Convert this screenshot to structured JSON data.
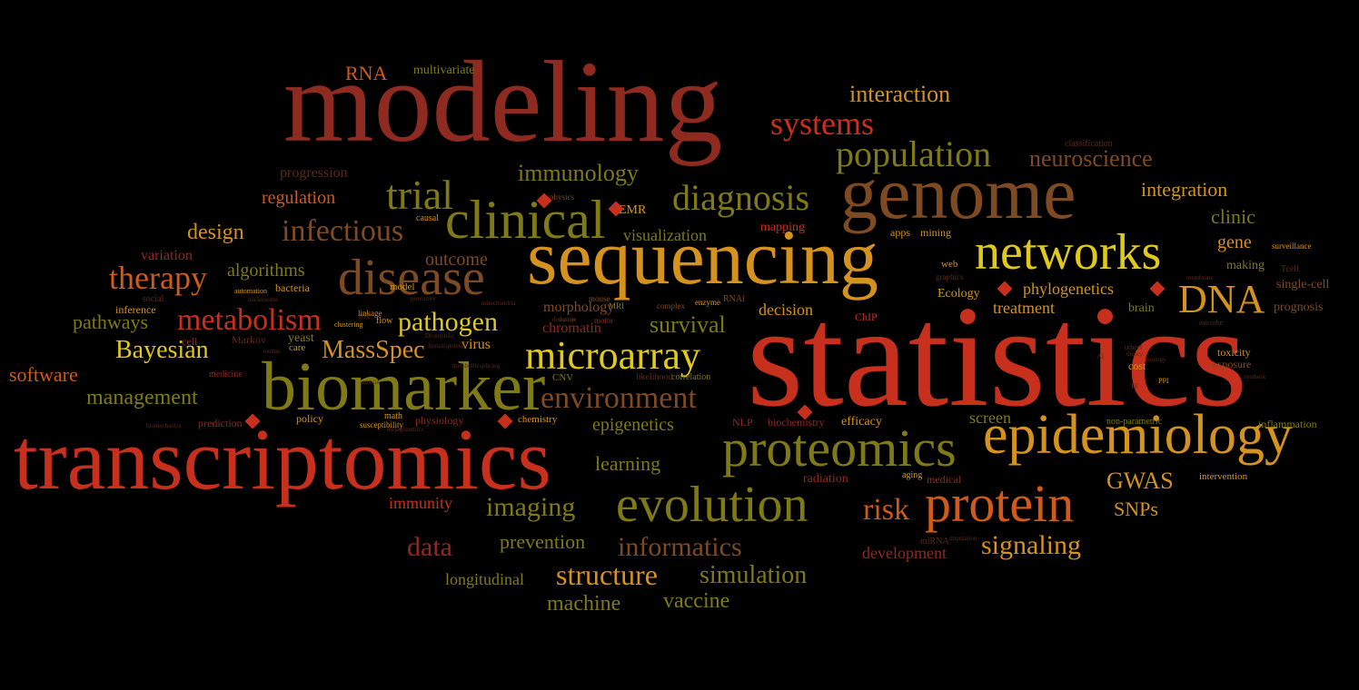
{
  "cloud": {
    "background": "#000000",
    "palette": {
      "red": "#c8301e",
      "darkred": "#8e2a1f",
      "orange": "#d05a18",
      "amber": "#d6921e",
      "yellow": "#e0c81c",
      "olive": "#7f7a16",
      "brown": "#7e4a22",
      "dimred": "#5a2a1c",
      "dimolive": "#4e4a1a"
    },
    "diamond_color": "#c8301e",
    "words": [
      {
        "text": "statistics",
        "color": "#c8301e"
      },
      {
        "text": "modeling",
        "color": "#8e2a1f"
      },
      {
        "text": "transcriptomics",
        "color": "#c8301e"
      },
      {
        "text": "sequencing",
        "color": "#d6921e"
      },
      {
        "text": "genome",
        "color": "#7e4a22"
      },
      {
        "text": "biomarker",
        "color": "#7f7a16"
      },
      {
        "text": "epidemiology",
        "color": "#d6921e"
      },
      {
        "text": "proteomics",
        "color": "#7f7a16"
      },
      {
        "text": "evolution",
        "color": "#7f7a16"
      },
      {
        "text": "clinical",
        "color": "#7f7a16"
      },
      {
        "text": "networks",
        "color": "#e0c81c"
      },
      {
        "text": "disease",
        "color": "#7e4a22"
      },
      {
        "text": "protein",
        "color": "#d05a18"
      },
      {
        "text": "microarray",
        "color": "#e0c81c"
      },
      {
        "text": "diagnosis",
        "color": "#7f7a16"
      },
      {
        "text": "population",
        "color": "#7f7a16"
      },
      {
        "text": "metabolism",
        "color": "#c8301e"
      },
      {
        "text": "systems",
        "color": "#c8301e"
      },
      {
        "text": "infectious",
        "color": "#7e4a22"
      },
      {
        "text": "trial",
        "color": "#7f7a16"
      },
      {
        "text": "DNA",
        "color": "#d6921e"
      },
      {
        "text": "therapy",
        "color": "#d05a18"
      },
      {
        "text": "environment",
        "color": "#7e4a22"
      },
      {
        "text": "informatics",
        "color": "#7e4a22"
      },
      {
        "text": "data",
        "color": "#8e2a1f"
      },
      {
        "text": "structure",
        "color": "#d6921e"
      },
      {
        "text": "pathogen",
        "color": "#e0c81c"
      },
      {
        "text": "Bayesian",
        "color": "#e0c81c"
      },
      {
        "text": "MassSpec",
        "color": "#d6921e"
      },
      {
        "text": "imaging",
        "color": "#7f7a16"
      },
      {
        "text": "risk",
        "color": "#d05a18"
      },
      {
        "text": "signaling",
        "color": "#d6921e"
      },
      {
        "text": "simulation",
        "color": "#7f7a16"
      },
      {
        "text": "immunology",
        "color": "#7f7a16"
      },
      {
        "text": "neuroscience",
        "color": "#7e4a22"
      },
      {
        "text": "interaction",
        "color": "#d6921e"
      },
      {
        "text": "integration",
        "color": "#d6921e"
      },
      {
        "text": "management",
        "color": "#7f7a16"
      },
      {
        "text": "survival",
        "color": "#7f7a16"
      },
      {
        "text": "software",
        "color": "#d05a18"
      },
      {
        "text": "pathways",
        "color": "#7f7a16"
      },
      {
        "text": "GWAS",
        "color": "#d6921e"
      },
      {
        "text": "design",
        "color": "#d6921e"
      },
      {
        "text": "machine",
        "color": "#7f7a16"
      },
      {
        "text": "vaccine",
        "color": "#7f7a16"
      },
      {
        "text": "prevention",
        "color": "#7f7a16"
      },
      {
        "text": "learning",
        "color": "#7f7a16"
      },
      {
        "text": "epigenetics",
        "color": "#7f7a16"
      },
      {
        "text": "outcome",
        "color": "#7e4a22"
      },
      {
        "text": "algorithms",
        "color": "#7f7a16"
      },
      {
        "text": "RNA",
        "color": "#d05a18"
      },
      {
        "text": "clinic",
        "color": "#7f7a16"
      },
      {
        "text": "gene",
        "color": "#d6921e"
      },
      {
        "text": "SNPs",
        "color": "#d6921e"
      },
      {
        "text": "visualization",
        "color": "#7f7a16"
      },
      {
        "text": "phylogenetics",
        "color": "#d6921e"
      },
      {
        "text": "treatment",
        "color": "#d6921e"
      },
      {
        "text": "decision",
        "color": "#d6921e"
      },
      {
        "text": "longitudinal",
        "color": "#7f7a16"
      },
      {
        "text": "immunity",
        "color": "#c8301e"
      },
      {
        "text": "development",
        "color": "#8e2a1f"
      },
      {
        "text": "regulation",
        "color": "#d05a18"
      },
      {
        "text": "variation",
        "color": "#8e2a1f"
      },
      {
        "text": "screen",
        "color": "#7f7a16"
      },
      {
        "text": "virus",
        "color": "#d6921e"
      },
      {
        "text": "morphology",
        "color": "#7e4a22"
      },
      {
        "text": "chromatin",
        "color": "#8e2a1f"
      },
      {
        "text": "progression",
        "color": "#5a2a1c"
      },
      {
        "text": "multivariate",
        "color": "#7f7a16"
      },
      {
        "text": "making",
        "color": "#7f7a16"
      },
      {
        "text": "single-cell",
        "color": "#7e4a22"
      },
      {
        "text": "prognosis",
        "color": "#7e4a22"
      },
      {
        "text": "brain",
        "color": "#7f7a16"
      },
      {
        "text": "Ecology",
        "color": "#d6921e"
      },
      {
        "text": "efficacy",
        "color": "#d6921e"
      },
      {
        "text": "radiation",
        "color": "#8e2a1f"
      },
      {
        "text": "medical",
        "color": "#8e2a1f"
      },
      {
        "text": "physiology",
        "color": "#8e2a1f"
      },
      {
        "text": "chemistry",
        "color": "#d6921e"
      },
      {
        "text": "biochemistry",
        "color": "#8e2a1f"
      },
      {
        "text": "NLP",
        "color": "#8e2a1f"
      },
      {
        "text": "inflammation",
        "color": "#7f7a16"
      },
      {
        "text": "exposure",
        "color": "#7e4a22"
      },
      {
        "text": "toxicity",
        "color": "#d6921e"
      },
      {
        "text": "cost",
        "color": "#d6921e"
      },
      {
        "text": "mapping",
        "color": "#c8301e"
      },
      {
        "text": "EMR",
        "color": "#d6921e"
      },
      {
        "text": "prediction",
        "color": "#8e2a1f"
      },
      {
        "text": "policy",
        "color": "#d6921e"
      },
      {
        "text": "yeast",
        "color": "#7f7a16"
      },
      {
        "text": "Markov",
        "color": "#5a2a1c"
      },
      {
        "text": "inference",
        "color": "#d6921e"
      },
      {
        "text": "bacteria",
        "color": "#d6921e"
      },
      {
        "text": "care",
        "color": "#d6921e"
      },
      {
        "text": "cell",
        "color": "#8e2a1f"
      },
      {
        "text": "social",
        "color": "#5a2a1c"
      },
      {
        "text": "medicine",
        "color": "#8e2a1f"
      },
      {
        "text": "apps",
        "color": "#d6921e"
      },
      {
        "text": "mining",
        "color": "#d6921e"
      },
      {
        "text": "web",
        "color": "#d6921e"
      },
      {
        "text": "complex",
        "color": "#7e4a22"
      },
      {
        "text": "mouse",
        "color": "#7e4a22"
      },
      {
        "text": "MRI",
        "color": "#7f7a16"
      },
      {
        "text": "motor",
        "color": "#8e2a1f"
      },
      {
        "text": "physics",
        "color": "#7e4a22"
      },
      {
        "text": "causal",
        "color": "#d6921e"
      },
      {
        "text": "model",
        "color": "#d6921e"
      },
      {
        "text": "math",
        "color": "#d6921e"
      },
      {
        "text": "susceptibility",
        "color": "#d6921e"
      },
      {
        "text": "linkage",
        "color": "#d6921e"
      },
      {
        "text": "flow",
        "color": "#d6921e"
      },
      {
        "text": "CNV",
        "color": "#7f7a16"
      },
      {
        "text": "correlation",
        "color": "#7f7a16"
      },
      {
        "text": "likelihood",
        "color": "#5a2a1c"
      },
      {
        "text": "ChIP",
        "color": "#c8301e"
      },
      {
        "text": "RNAi",
        "color": "#7e4a22"
      },
      {
        "text": "enzyme",
        "color": "#d6921e"
      },
      {
        "text": "non-parametric",
        "color": "#7f7a16"
      },
      {
        "text": "intervention",
        "color": "#d6921e"
      },
      {
        "text": "aging",
        "color": "#d6921e"
      },
      {
        "text": "miRNA",
        "color": "#5a2a1c"
      },
      {
        "text": "Tcell",
        "color": "#5a2a1c"
      },
      {
        "text": "surveillance",
        "color": "#d6921e"
      },
      {
        "text": "classification",
        "color": "#5a2a1c"
      },
      {
        "text": "graphics",
        "color": "#5a2a1c"
      },
      {
        "text": "clustering",
        "color": "#d6921e"
      },
      {
        "text": "automation",
        "color": "#d6921e"
      },
      {
        "text": "detection",
        "color": "#5a2a1c"
      },
      {
        "text": "dosage",
        "color": "#5a2a1c"
      },
      {
        "text": "mitochondria",
        "color": "#5a2a1c"
      },
      {
        "text": "Drosophila",
        "color": "#5a2a1c"
      },
      {
        "text": "metagenomics",
        "color": "#5a2a1c"
      },
      {
        "text": "microbe",
        "color": "#5a2a1c"
      },
      {
        "text": "PPI",
        "color": "#d6921e"
      },
      {
        "text": "TF",
        "color": "#5a2a1c"
      },
      {
        "text": "AI",
        "color": "#5a2a1c"
      },
      {
        "text": "others",
        "color": "#5a2a1c"
      },
      {
        "text": "theory",
        "color": "#5a2a1c"
      },
      {
        "text": "biology",
        "color": "#5a2a1c"
      },
      {
        "text": "membrane",
        "color": "#5a2a1c"
      },
      {
        "text": "synthetic",
        "color": "#5a2a1c"
      },
      {
        "text": "hematopoiesis",
        "color": "#5a2a1c"
      },
      {
        "text": "exome",
        "color": "#5a2a1c"
      },
      {
        "text": "splicing",
        "color": "#5a2a1c"
      },
      {
        "text": "HPC",
        "color": "#5a2a1c"
      },
      {
        "text": "proximity",
        "color": "#5a2a1c"
      },
      {
        "text": "nucleosome",
        "color": "#5a2a1c"
      },
      {
        "text": "mobile",
        "color": "#5a2a1c"
      },
      {
        "text": "metabolite",
        "color": "#5a2a1c"
      },
      {
        "text": "imputation",
        "color": "#5a2a1c"
      },
      {
        "text": "biomechanics",
        "color": "#5a2a1c"
      },
      {
        "text": "brain-computer",
        "color": "#5a2a1c"
      }
    ]
  }
}
